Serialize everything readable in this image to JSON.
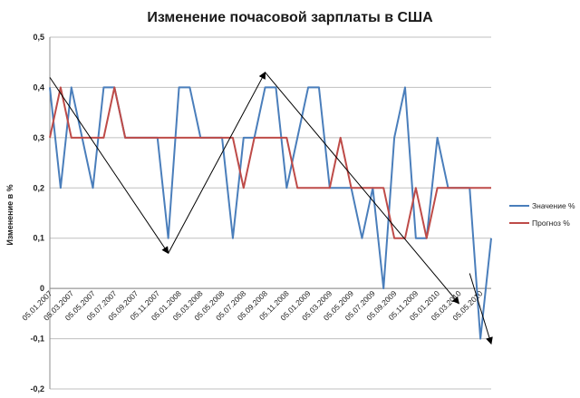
{
  "chart_data": {
    "type": "line",
    "title": "Изменение почасовой зарплаты в США",
    "ylabel": "Изменение в %",
    "ylim": [
      -0.2,
      0.5
    ],
    "yticks": [
      -0.2,
      -0.1,
      0,
      0.1,
      0.2,
      0.3,
      0.4,
      0.5
    ],
    "ytick_labels": [
      "-0,2",
      "-0,1",
      "0",
      "0,1",
      "0,2",
      "0,3",
      "0,4",
      "0,5"
    ],
    "grid": "horizontal",
    "legend": "right",
    "x": [
      "01.2007",
      "02.2007",
      "03.2007",
      "04.2007",
      "05.2007",
      "06.2007",
      "07.2007",
      "08.2007",
      "09.2007",
      "10.2007",
      "11.2007",
      "12.2007",
      "01.2008",
      "02.2008",
      "03.2008",
      "04.2008",
      "05.2008",
      "06.2008",
      "07.2008",
      "08.2008",
      "09.2008",
      "10.2008",
      "11.2008",
      "12.2008",
      "01.2009",
      "02.2009",
      "03.2009",
      "04.2009",
      "05.2009",
      "06.2009",
      "07.2009",
      "08.2009",
      "09.2009",
      "10.2009",
      "11.2009",
      "12.2009",
      "01.2010",
      "02.2010",
      "03.2010",
      "04.2010",
      "05.2010",
      "06.2010"
    ],
    "x_tick_labels": [
      "05.01.2007",
      "05.03.2007",
      "05.05.2007",
      "05.07.2007",
      "05.09.2007",
      "05.11.2007",
      "05.01.2008",
      "05.03.2008",
      "05.05.2008",
      "05.07.2008",
      "05.09.2008",
      "05.11.2008",
      "05.01.2009",
      "05.03.2009",
      "05.05.2009",
      "05.07.2009",
      "05.09.2009",
      "05.11.2009",
      "05.01.2010",
      "05.03.2010",
      "05.05.2010"
    ],
    "series": [
      {
        "name": "Значение %",
        "color": "#4a7ebb",
        "values": [
          0.4,
          0.2,
          0.4,
          0.3,
          0.2,
          0.4,
          0.4,
          0.3,
          0.3,
          0.3,
          0.3,
          0.1,
          0.4,
          0.4,
          0.3,
          0.3,
          0.3,
          0.1,
          0.3,
          0.3,
          0.4,
          0.4,
          0.2,
          0.3,
          0.4,
          0.4,
          0.2,
          0.2,
          0.2,
          0.1,
          0.2,
          0.0,
          0.3,
          0.4,
          0.1,
          0.1,
          0.3,
          0.2,
          0.2,
          0.2,
          -0.1,
          0.1
        ]
      },
      {
        "name": "Прогноз %",
        "color": "#be4b48",
        "values": [
          0.3,
          0.4,
          0.3,
          0.3,
          0.3,
          0.3,
          0.4,
          0.3,
          0.3,
          0.3,
          0.3,
          0.3,
          0.3,
          0.3,
          0.3,
          0.3,
          0.3,
          0.3,
          0.2,
          0.3,
          0.3,
          0.3,
          0.3,
          0.2,
          0.2,
          0.2,
          0.2,
          0.3,
          0.2,
          0.2,
          0.2,
          0.2,
          0.1,
          0.1,
          0.2,
          0.1,
          0.2,
          0.2,
          0.2,
          0.2,
          0.2,
          0.2
        ]
      }
    ],
    "annotations": {
      "type": "arrows",
      "color": "#000000",
      "arrows": [
        {
          "from": [
            0,
            0.42
          ],
          "to": [
            11,
            0.07
          ]
        },
        {
          "from": [
            11,
            0.07
          ],
          "to": [
            20,
            0.43
          ]
        },
        {
          "from": [
            20,
            0.43
          ],
          "to": [
            38,
            -0.03
          ]
        },
        {
          "from": [
            39,
            0.03
          ],
          "to": [
            41,
            -0.11
          ]
        }
      ]
    }
  }
}
